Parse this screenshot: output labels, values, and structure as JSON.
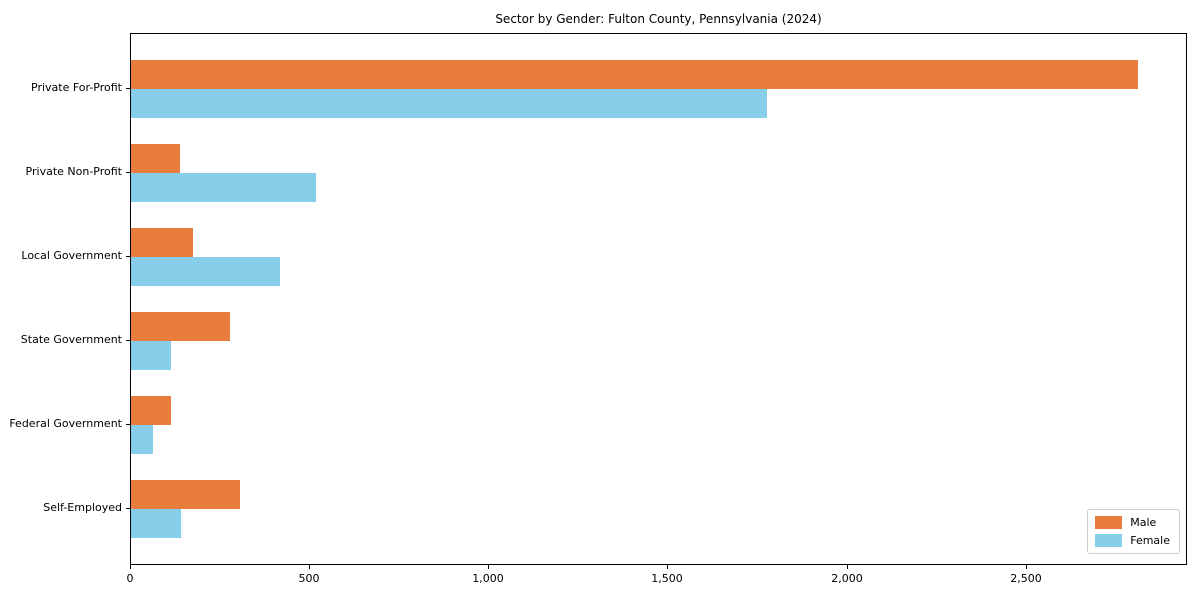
{
  "chart_data": {
    "type": "bar",
    "orientation": "horizontal",
    "title": "Sector by Gender: Fulton County, Pennsylvania (2024)",
    "categories": [
      "Private For-Profit",
      "Private Non-Profit",
      "Local Government",
      "State Government",
      "Federal Government",
      "Self-Employed"
    ],
    "series": [
      {
        "name": "Male",
        "color": "#e87d3e",
        "values": [
          2810,
          137,
          172,
          277,
          113,
          304
        ]
      },
      {
        "name": "Female",
        "color": "#87ceeb",
        "values": [
          1775,
          517,
          416,
          113,
          62,
          140
        ]
      }
    ],
    "xlabel": "",
    "ylabel": "",
    "xlim": [
      0,
      2950
    ],
    "xticks": [
      0,
      500,
      1000,
      1500,
      2000,
      2500
    ],
    "xtick_labels": [
      "0",
      "500",
      "1,000",
      "1,500",
      "2,000",
      "2,500"
    ],
    "grid": false,
    "legend_position": "lower right",
    "axis_color": "#000000",
    "background_color": "#ffffff"
  }
}
